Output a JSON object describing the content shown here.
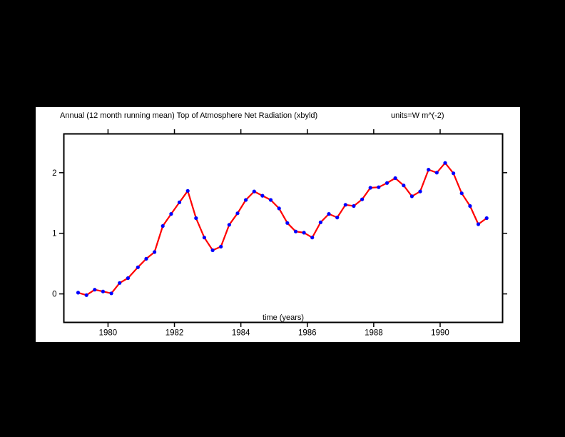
{
  "window": {
    "background_color": "#000000",
    "panel_color": "#ffffff"
  },
  "chart_data": {
    "type": "line",
    "title": "Annual (12 month running mean) Top of Atmosphere Net Radiation (xbyld)",
    "units_label": "units=W m^(-2)",
    "xlabel": "time (years)",
    "ylabel": "",
    "x_ticks": [
      1980,
      1982,
      1984,
      1986,
      1988,
      1990
    ],
    "y_ticks": [
      0,
      1,
      2
    ],
    "xlim": [
      1978.67,
      1991.88
    ],
    "ylim": [
      -0.47,
      2.64
    ],
    "grid": false,
    "legend": "none",
    "line_color": "#ff0000",
    "marker_color": "#0000ff",
    "axis_color": "#000000",
    "series": [
      {
        "name": "TOA Net Radiation (12-month running mean)",
        "x": [
          1979.1,
          1979.35,
          1979.6,
          1979.85,
          1980.1,
          1980.35,
          1980.6,
          1980.9,
          1981.15,
          1981.4,
          1981.65,
          1981.9,
          1982.15,
          1982.4,
          1982.65,
          1982.9,
          1983.15,
          1983.4,
          1983.65,
          1983.9,
          1984.15,
          1984.4,
          1984.65,
          1984.9,
          1985.15,
          1985.4,
          1985.65,
          1985.9,
          1986.15,
          1986.4,
          1986.65,
          1986.9,
          1987.15,
          1987.4,
          1987.65,
          1987.9,
          1988.15,
          1988.4,
          1988.65,
          1988.9,
          1989.15,
          1989.4,
          1989.65,
          1989.9,
          1990.15,
          1990.4,
          1990.65,
          1990.9,
          1991.15,
          1991.4
        ],
        "y": [
          0.02,
          -0.02,
          0.07,
          0.04,
          0.01,
          0.18,
          0.26,
          0.44,
          0.58,
          0.69,
          1.12,
          1.32,
          1.51,
          1.7,
          1.25,
          0.93,
          0.72,
          0.78,
          1.14,
          1.33,
          1.55,
          1.69,
          1.62,
          1.55,
          1.41,
          1.17,
          1.03,
          1.01,
          0.93,
          1.18,
          1.32,
          1.26,
          1.47,
          1.45,
          1.56,
          1.75,
          1.76,
          1.83,
          1.91,
          1.79,
          1.61,
          1.69,
          2.05,
          2.0,
          2.16,
          1.99,
          1.66,
          1.45,
          1.15,
          1.25
        ]
      }
    ]
  }
}
